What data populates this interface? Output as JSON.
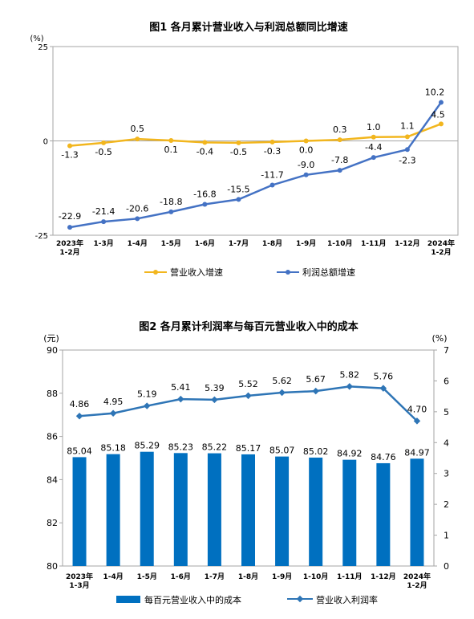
{
  "chart_data": [
    {
      "type": "line",
      "title": "图1  各月累计营业收入与利润总额同比增速",
      "ylabel": "(%)",
      "ylim": [
        -25,
        25
      ],
      "yticks": [
        "25",
        "0",
        "-25"
      ],
      "categories": [
        "2023年\n1-2月",
        "1-3月",
        "1-4月",
        "1-5月",
        "1-6月",
        "1-7月",
        "1-8月",
        "1-9月",
        "1-10月",
        "1-11月",
        "1-12月",
        "2024年\n1-2月"
      ],
      "series": [
        {
          "name": "营业收入增速",
          "color": "#f2b61e",
          "values": [
            -1.3,
            -0.5,
            0.5,
            0.1,
            -0.4,
            -0.5,
            -0.3,
            0.0,
            0.3,
            1.0,
            1.1,
            4.5
          ],
          "labels": [
            "-1.3",
            "-0.5",
            "0.5",
            "0.1",
            "-0.4",
            "-0.5",
            "-0.3",
            "0.0",
            "0.3",
            "1.0",
            "1.1",
            "4.5"
          ]
        },
        {
          "name": "利润总额增速",
          "color": "#4472c4",
          "values": [
            -22.9,
            -21.4,
            -20.6,
            -18.8,
            -16.8,
            -15.5,
            -11.7,
            -9.0,
            -7.8,
            -4.4,
            -2.3,
            10.2
          ],
          "labels": [
            "-22.9",
            "-21.4",
            "-20.6",
            "-18.8",
            "-16.8",
            "-15.5",
            "-11.7",
            "-9.0",
            "-7.8",
            "-4.4",
            "-2.3",
            "10.2"
          ]
        }
      ],
      "legend_position": "bottom"
    },
    {
      "type": "bar",
      "title": "图2  各月累计利润率与每百元营业收入中的成本",
      "ylabel_left": "(元)",
      "ylabel_right": "(%)",
      "ylim_left": [
        80,
        90
      ],
      "ylim_right": [
        0,
        7
      ],
      "yticks_left": [
        "90",
        "88",
        "86",
        "84",
        "82",
        "80"
      ],
      "yticks_right": [
        "7",
        "6",
        "5",
        "4",
        "3",
        "2",
        "1",
        "0"
      ],
      "categories": [
        "2023年\n1-3月",
        "1-4月",
        "1-5月",
        "1-6月",
        "1-7月",
        "1-8月",
        "1-9月",
        "1-10月",
        "1-11月",
        "1-12月",
        "2024年\n1-2月"
      ],
      "series": [
        {
          "name": "每百元营业收入中的成本",
          "type": "bar",
          "axis": "left",
          "color": "#0070c0",
          "values": [
            85.04,
            85.18,
            85.29,
            85.23,
            85.22,
            85.17,
            85.07,
            85.02,
            84.92,
            84.76,
            84.97
          ],
          "labels": [
            "85.04",
            "85.18",
            "85.29",
            "85.23",
            "85.22",
            "85.17",
            "85.07",
            "85.02",
            "84.92",
            "84.76",
            "84.97"
          ]
        },
        {
          "name": "营业收入利润率",
          "type": "line",
          "axis": "right",
          "color": "#2e75b6",
          "values": [
            4.86,
            4.95,
            5.19,
            5.41,
            5.39,
            5.52,
            5.62,
            5.67,
            5.82,
            5.76,
            4.7
          ],
          "labels": [
            "4.86",
            "4.95",
            "5.19",
            "5.41",
            "5.39",
            "5.52",
            "5.62",
            "5.67",
            "5.82",
            "5.76",
            "4.70"
          ]
        }
      ],
      "legend_position": "bottom"
    }
  ]
}
